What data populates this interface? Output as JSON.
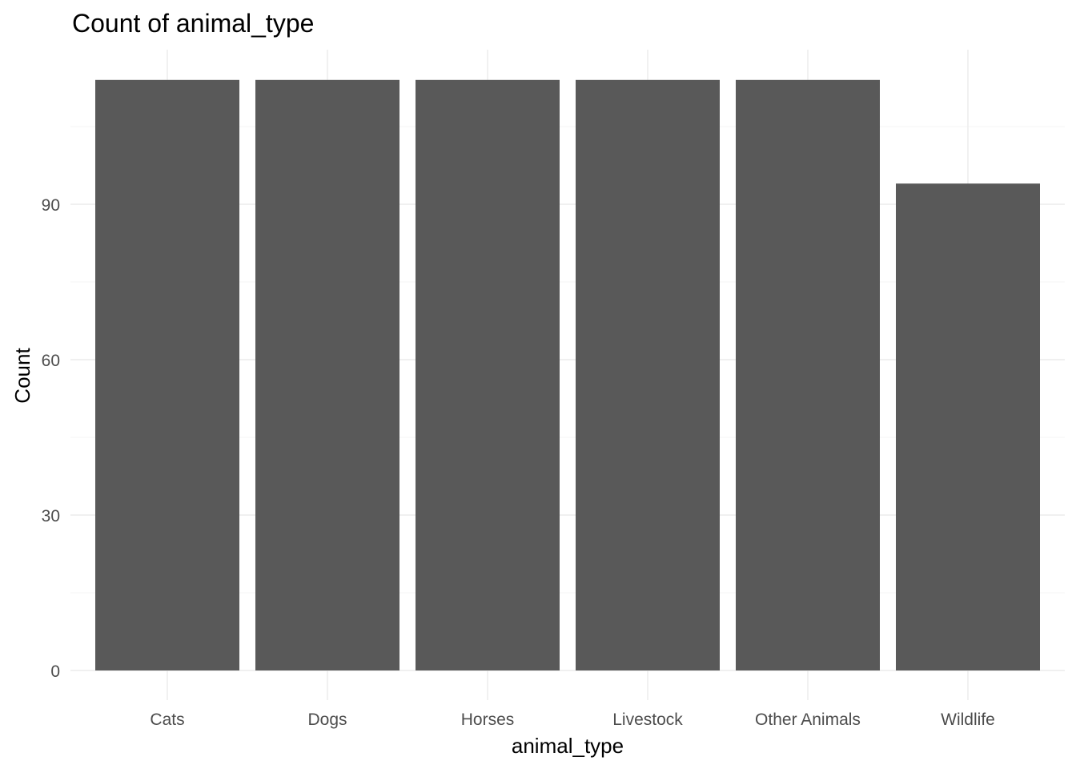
{
  "chart_data": {
    "type": "bar",
    "title": "Count of animal_type",
    "xlabel": "animal_type",
    "ylabel": "Count",
    "categories": [
      "Cats",
      "Dogs",
      "Horses",
      "Livestock",
      "Other Animals",
      "Wildlife"
    ],
    "values": [
      114,
      114,
      114,
      114,
      114,
      94
    ],
    "ylim": [
      0,
      119
    ],
    "yticks": [
      0,
      30,
      60,
      90
    ],
    "grid": true,
    "legend": "none",
    "colors": {
      "bar": "#595959",
      "grid_major": "#ebebeb",
      "grid_minor": "#f5f5f5",
      "tick_text": "#4d4d4d"
    }
  }
}
